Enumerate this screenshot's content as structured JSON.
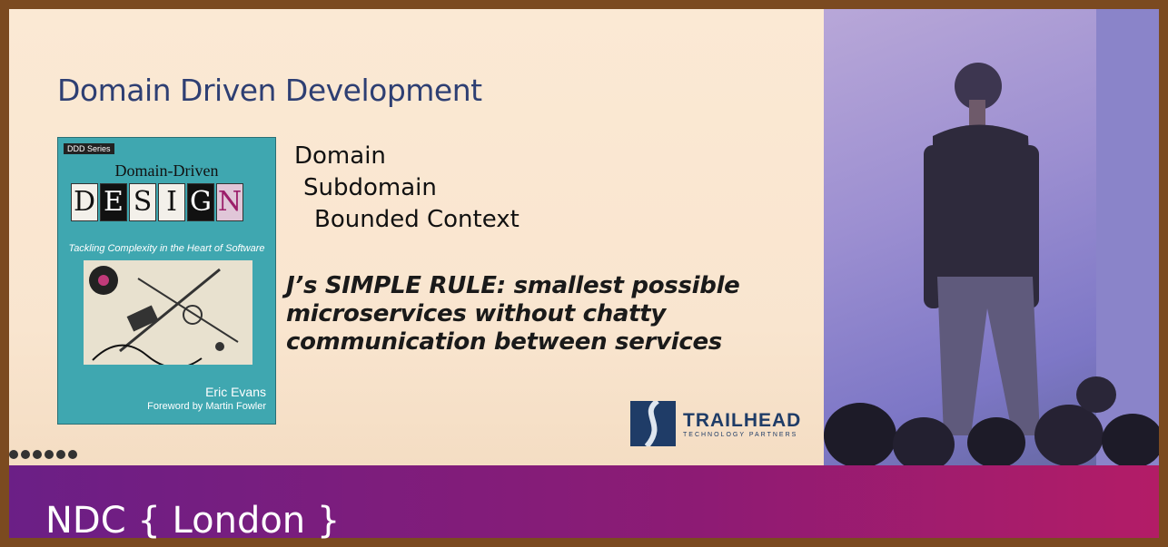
{
  "slide": {
    "title": "Domain Driven Development",
    "book": {
      "series": "DDD Series",
      "title_line1": "Domain-Driven",
      "title_letters": [
        "D",
        "E",
        "S",
        "I",
        "G",
        "N"
      ],
      "subtitle": "Tackling Complexity in the Heart of Software",
      "author": "Eric Evans",
      "foreword": "Foreword by Martin Fowler"
    },
    "terms": [
      "Domain",
      "Subdomain",
      "Bounded Context"
    ],
    "rule": "J’s SIMPLE RULE: smallest possible microservices without chatty communication between services",
    "logo": {
      "name": "TRAILHEAD",
      "tagline": "TECHNOLOGY PARTNERS"
    }
  },
  "footer": {
    "brand": "NDC { London }"
  },
  "colors": {
    "title": "#2e3f73",
    "book": "#3fa7b0",
    "footer_start": "#6b1f86",
    "footer_end": "#b31c67"
  }
}
